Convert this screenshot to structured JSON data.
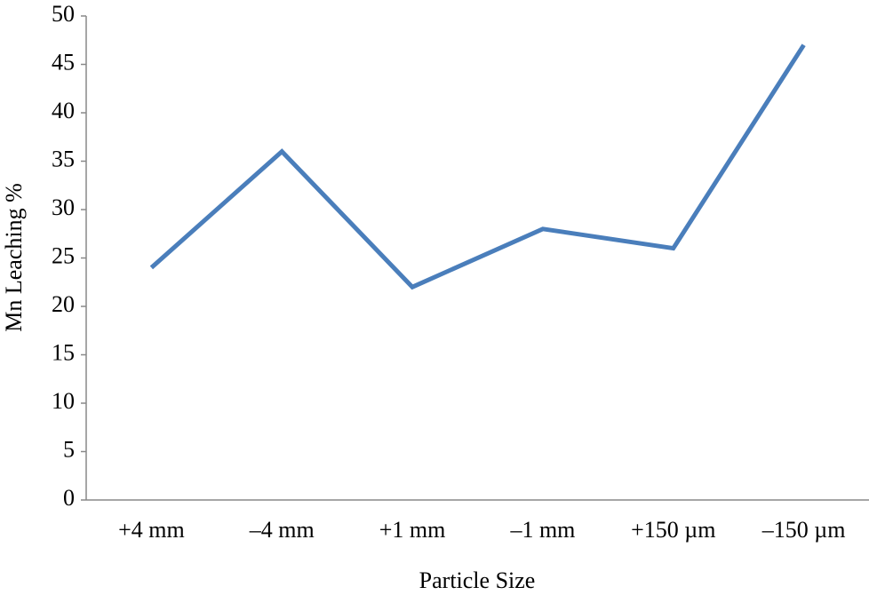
{
  "chart_data": {
    "type": "line",
    "x_label": "Particle Size",
    "y_label": "Mn Leaching %",
    "categories": [
      "+4 mm",
      "–4 mm",
      "+1 mm",
      "–1 mm",
      "+150 µm",
      "–150 µm"
    ],
    "series": [
      {
        "name": "Mn Leaching",
        "color": "#4a7ebb",
        "values": [
          24,
          36,
          22,
          28,
          26,
          47
        ]
      }
    ],
    "ylim": [
      0,
      50
    ],
    "yticks": [
      0,
      5,
      10,
      15,
      20,
      25,
      30,
      35,
      40,
      45,
      50
    ],
    "grid": false
  }
}
